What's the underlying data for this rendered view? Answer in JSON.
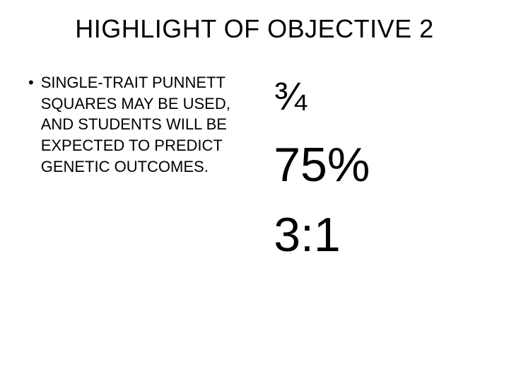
{
  "title": "HIGHLIGHT OF OBJECTIVE 2",
  "bullet": {
    "marker": "•",
    "text": "SINGLE-TRAIT PUNNETT SQUARES MAY BE USED, AND STUDENTS WILL BE EXPECTED TO PREDICT GENETIC OUTCOMES."
  },
  "right": {
    "fraction": "¾",
    "percent": "75%",
    "ratio": "3:1"
  },
  "colors": {
    "background": "#ffffff",
    "text": "#000000"
  },
  "typography": {
    "title_fontsize": 36,
    "body_fontsize": 22,
    "fraction_fontsize": 56,
    "large_fontsize": 68,
    "font_family": "Arial"
  }
}
